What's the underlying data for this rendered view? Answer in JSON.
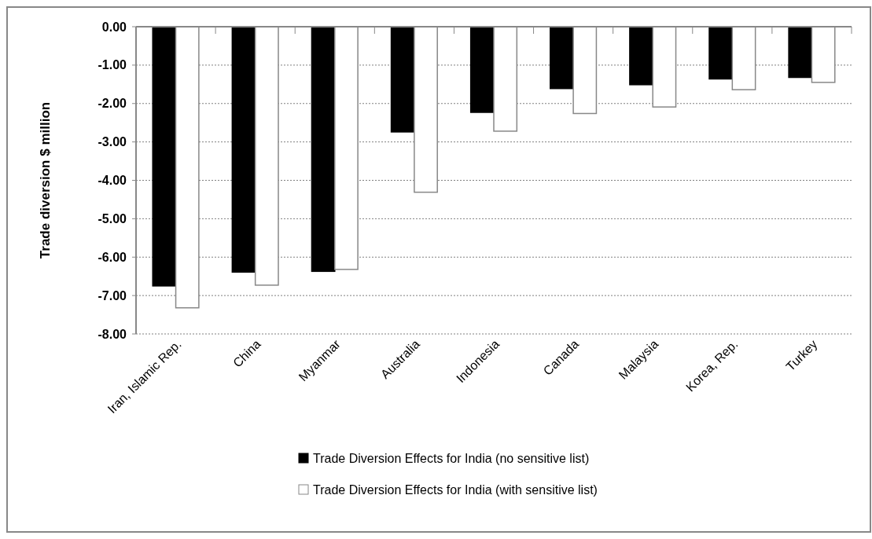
{
  "chart_data": {
    "type": "bar",
    "ylabel": "Trade diversion $ million",
    "categories": [
      "Iran, Islamic Rep.",
      "China",
      "Myanmar",
      "Australia",
      "Indonesia",
      "Canada",
      "Malaysia",
      "Korea, Rep.",
      "Turkey"
    ],
    "series": [
      {
        "name": "Trade Diversion Effects for India (no sensitive list)",
        "color": "#000000",
        "values": [
          -6.75,
          -6.39,
          -6.37,
          -2.74,
          -2.23,
          -1.61,
          -1.51,
          -1.36,
          -1.32
        ]
      },
      {
        "name": "Trade Diversion Effects for India (with sensitive list)",
        "color": "#ffffff",
        "values": [
          -7.32,
          -6.73,
          -6.32,
          -4.31,
          -2.72,
          -2.26,
          -2.09,
          -1.64,
          -1.45
        ]
      }
    ],
    "ylim": [
      -8,
      0
    ],
    "yticks": [
      {
        "value": 0,
        "label": "0.00"
      },
      {
        "value": -1,
        "label": "-1.00"
      },
      {
        "value": -2,
        "label": "-2.00"
      },
      {
        "value": -3,
        "label": "-3.00"
      },
      {
        "value": -4,
        "label": "-4.00"
      },
      {
        "value": -5,
        "label": "-5.00"
      },
      {
        "value": -6,
        "label": "-6.00"
      },
      {
        "value": -7,
        "label": "-7.00"
      },
      {
        "value": -8,
        "label": "-8.00"
      }
    ],
    "grid": "y",
    "legend": "bottom"
  }
}
